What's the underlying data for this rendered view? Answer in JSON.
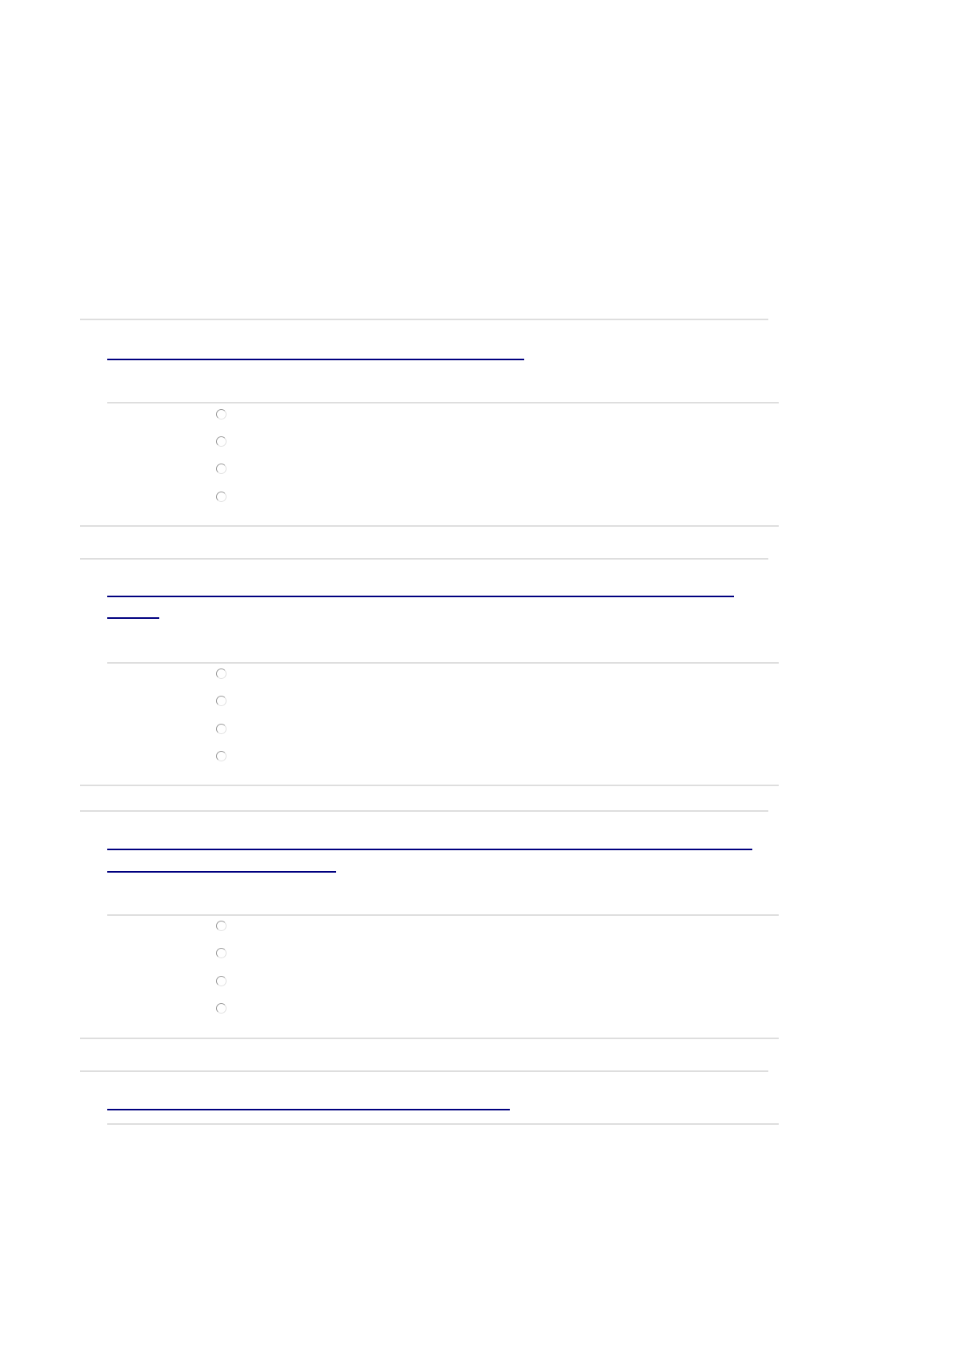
{
  "questions": [
    {
      "link_text": "",
      "options": [
        "",
        "",
        "",
        ""
      ],
      "selected": null
    },
    {
      "link_text": "",
      "options": [
        "",
        "",
        "",
        ""
      ],
      "selected": null
    },
    {
      "link_text": "",
      "options": [
        "",
        "",
        "",
        ""
      ],
      "selected": null
    },
    {
      "link_text": "",
      "options": [],
      "selected": null
    }
  ],
  "colors": {
    "link": "#00007f",
    "divider": "#dedede"
  }
}
